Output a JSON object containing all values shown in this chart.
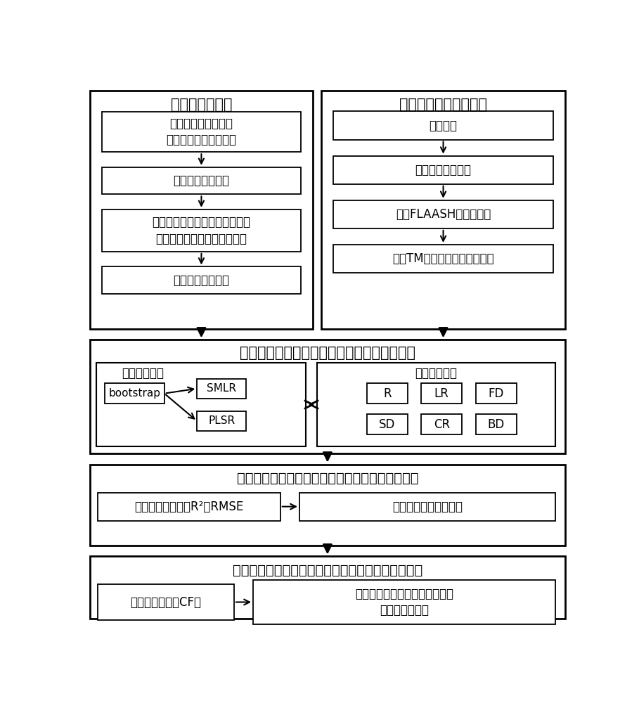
{
  "bg_color": "#ffffff",
  "border_color": "#000000",
  "text_color": "#000000",
  "fig_width": 9.09,
  "fig_height": 10.0,
  "top_left_title": "监测区实验测量",
  "top_right_title": "高光谱遥感影像预处理",
  "left_box1": "监测区设定采样区域\n采集湿地土壤表层样本",
  "left_box2": "湿地土壤光谱测量",
  "left_box3": "湿地土壤硒化微生物氨氧化细菌\n和亚硒酸氧化细菌数量的测量",
  "left_box4": "计数测量结果合计",
  "right_box1": "格式转换",
  "right_box2": "绝对辅亮度值转换",
  "right_box3": "基于FLAASH的大气校正",
  "right_box4": "基于TM参考影像的几何精校正",
  "model_title": "构建监测区湿地土壤硒化微生物数量估算模型",
  "regression_title": "回归建模方法",
  "spectrum_title": "光谱变换技术",
  "bootstrap_label": "bootstrap",
  "smlr_label": "SMLR",
  "plsr_label": "PLSR",
  "spectrum_boxes": [
    "R",
    "LR",
    "FD",
    "SD",
    "CR",
    "BD"
  ],
  "accuracy_title": "监测区湿地土壤硒化微生物数量估算结果精度评价",
  "accuracy_left": "计算精度评价指标R²和RMSE",
  "accuracy_right": "选取最高精度估算结果",
  "optimal_title": "基于代价函数的湿地土壤硒化微生物数量最优值确定",
  "optimal_left": "构建代价函数（CF）",
  "optimal_right": "确定监测区湿地土壤硒化微生物\n群落数量最优值"
}
